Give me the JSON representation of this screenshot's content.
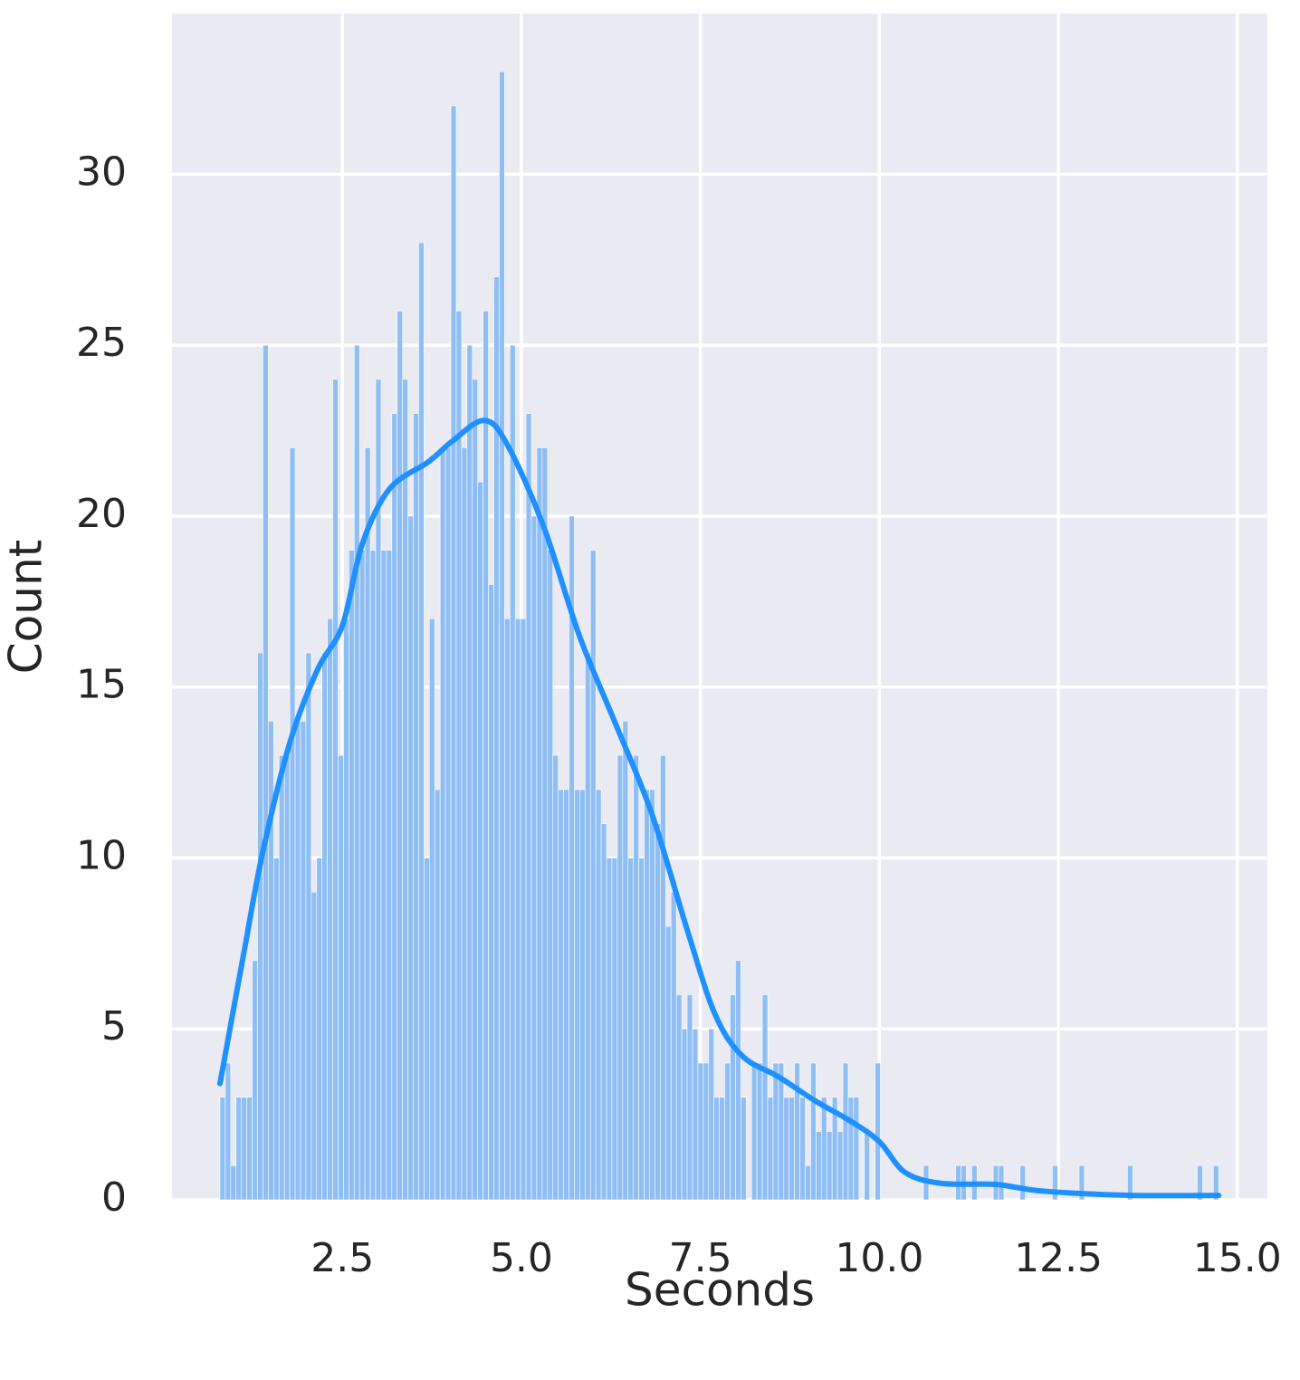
{
  "chart_data": {
    "type": "histogram",
    "x_label": "Seconds",
    "y_label": "Count",
    "bins": [
      0.79,
      0.865,
      0.94,
      1.015,
      1.09,
      1.165,
      1.24,
      1.315,
      1.39,
      1.465,
      1.54,
      1.615,
      1.69,
      1.765,
      1.84,
      1.915,
      1.99,
      2.065,
      2.14,
      2.215,
      2.29,
      2.365,
      2.44,
      2.515,
      2.59,
      2.665,
      2.74,
      2.815,
      2.89,
      2.965,
      3.04,
      3.115,
      3.19,
      3.265,
      3.34,
      3.415,
      3.49,
      3.565,
      3.64,
      3.715,
      3.79,
      3.865,
      3.94,
      4.015,
      4.09,
      4.165,
      4.24,
      4.315,
      4.39,
      4.465,
      4.54,
      4.615,
      4.69,
      4.765,
      4.84,
      4.915,
      4.99,
      5.065,
      5.14,
      5.215,
      5.29,
      5.365,
      5.44,
      5.515,
      5.59,
      5.665,
      5.74,
      5.815,
      5.89,
      5.965,
      6.04,
      6.115,
      6.19,
      6.265,
      6.34,
      6.415,
      6.49,
      6.565,
      6.64,
      6.715,
      6.79,
      6.865,
      6.94,
      7.015,
      7.09,
      7.165,
      7.24,
      7.315,
      7.39,
      7.465,
      7.54,
      7.615,
      7.69,
      7.765,
      7.84,
      7.915,
      7.99,
      8.065,
      8.14,
      8.215,
      8.29,
      8.365,
      8.44,
      8.515,
      8.59,
      8.665,
      8.74,
      8.815,
      8.89,
      8.965,
      9.04,
      9.115,
      9.19,
      9.265,
      9.34,
      9.415,
      9.49,
      9.565,
      9.64,
      9.715,
      9.79,
      9.865,
      9.94,
      10.015,
      10.09,
      10.165,
      10.24,
      10.315,
      10.39,
      10.465,
      10.54,
      10.615,
      10.69,
      10.765,
      10.84,
      10.915,
      10.99,
      11.065,
      11.14,
      11.215,
      11.29,
      11.365,
      11.44,
      11.515,
      11.59,
      11.665,
      11.74,
      11.815,
      11.89,
      11.965,
      12.04,
      12.115,
      12.19,
      12.265,
      12.34,
      12.415,
      12.49,
      12.565,
      12.64,
      12.715,
      12.79,
      12.865,
      12.94,
      13.015,
      13.09,
      13.165,
      13.24,
      13.315,
      13.39,
      13.465,
      13.54,
      13.615,
      13.69,
      13.765,
      13.84,
      13.915,
      13.99,
      14.065,
      14.14,
      14.215,
      14.29,
      14.365,
      14.44,
      14.515,
      14.59,
      14.665,
      14.74
    ],
    "values": [
      3,
      4,
      1,
      3,
      3,
      3,
      7,
      16,
      25,
      14,
      10,
      13,
      13,
      22,
      14,
      14,
      16,
      9,
      10,
      16,
      17,
      24,
      13,
      17,
      19,
      25,
      19,
      22,
      19,
      24,
      19,
      19,
      23,
      26,
      24,
      20,
      23,
      28,
      10,
      17,
      12,
      22,
      22,
      32,
      26,
      22,
      25,
      24,
      21,
      26,
      18,
      27,
      33,
      17,
      25,
      17,
      17,
      23,
      20,
      22,
      22,
      19,
      13,
      12,
      12,
      20,
      12,
      12,
      16,
      19,
      12,
      11,
      10,
      10,
      13,
      14,
      10,
      13,
      10,
      12,
      12,
      11,
      13,
      8,
      9,
      6,
      5,
      6,
      5,
      4,
      4,
      5,
      3,
      3,
      4,
      6,
      7,
      3,
      0,
      4,
      4,
      6,
      3,
      4,
      4,
      3,
      3,
      4,
      3,
      1,
      4,
      2,
      3,
      2,
      3,
      2,
      4,
      3,
      3,
      0,
      2,
      0,
      4,
      0,
      0,
      0,
      0,
      0,
      0,
      0,
      0,
      1,
      0,
      0,
      0,
      0,
      0,
      1,
      1,
      0,
      1,
      0,
      0,
      0,
      1,
      1,
      0,
      0,
      0,
      1,
      0,
      0,
      0,
      0,
      0,
      1,
      0,
      0,
      0,
      0,
      1,
      0,
      0,
      0,
      0,
      0,
      0,
      0,
      0,
      1,
      0,
      0,
      0,
      0,
      0,
      0,
      0,
      0,
      0,
      0,
      0,
      0,
      1,
      0,
      0,
      1
    ],
    "color": "#8fbef5",
    "kde": {
      "color": "#1e90ff",
      "x": [
        0.79,
        1.13,
        1.39,
        1.77,
        2.15,
        2.5,
        2.78,
        3.16,
        3.71,
        4.04,
        4.48,
        4.8,
        5.31,
        5.81,
        6.32,
        6.82,
        7.33,
        7.71,
        8.09,
        8.59,
        9.1,
        9.6,
        10.0,
        10.36,
        10.87,
        11.63,
        12.26,
        13.52,
        14.74
      ],
      "values": [
        3.4,
        7.3,
        10.2,
        13.4,
        15.5,
        16.8,
        19.2,
        20.8,
        21.6,
        22.2,
        22.8,
        22.1,
        19.7,
        16.5,
        13.9,
        11.3,
        7.8,
        5.4,
        4.2,
        3.6,
        2.9,
        2.3,
        1.7,
        0.8,
        0.48,
        0.45,
        0.26,
        0.13,
        0.13
      ]
    },
    "xlim": [
      0.12,
      15.42
    ],
    "ylim": [
      0,
      34.7
    ],
    "xticks": [
      2.5,
      {
        "value": 5,
        "label": "5.0"
      },
      7.5,
      {
        "value": 10,
        "label": "10.0"
      },
      12.5,
      {
        "value": 15,
        "label": "15.0"
      }
    ],
    "yticks": [
      0,
      5,
      10,
      15,
      20,
      25,
      30
    ],
    "grid": true
  }
}
